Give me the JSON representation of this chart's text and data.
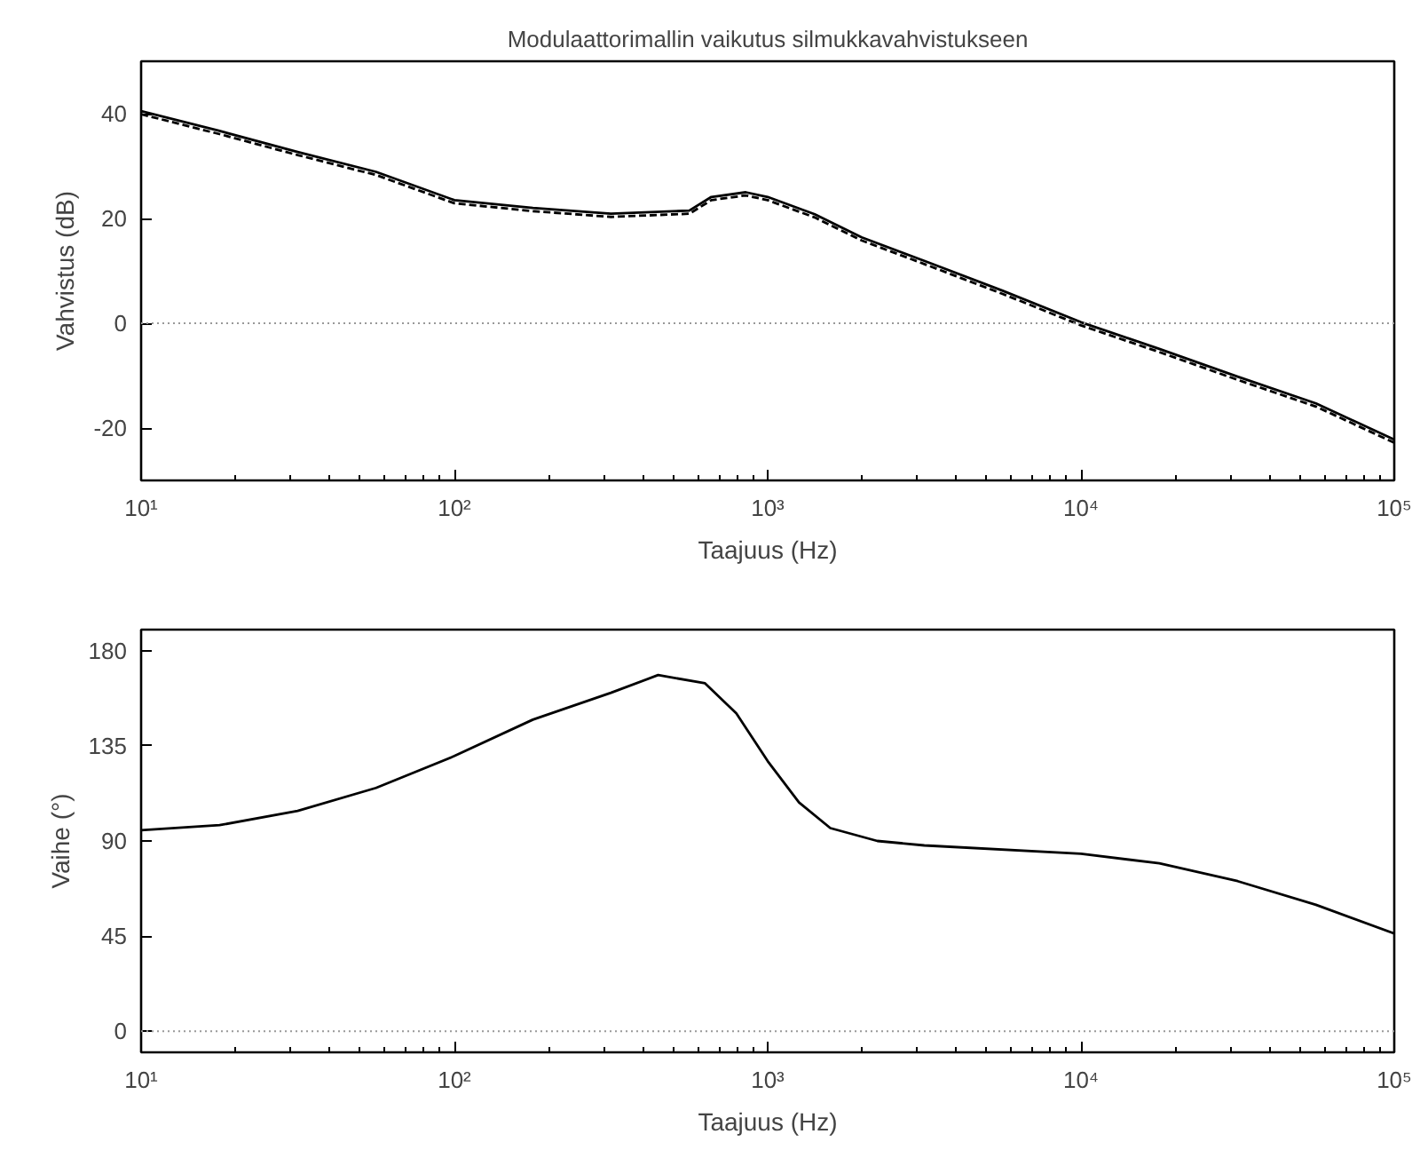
{
  "chart_data": [
    {
      "type": "line",
      "title": "Modulaattorimallin vaikutus silmukkavahvistukseen",
      "xlabel": "Taajuus (Hz)",
      "ylabel": "Vahvistus (dB)",
      "log": "x",
      "grid": false,
      "x": [
        10,
        17.8,
        31.6,
        56.2,
        100,
        178,
        316,
        562,
        661,
        851,
        1000,
        1413,
        1995,
        3162,
        5623,
        10000,
        17783,
        31623,
        56234,
        100000
      ],
      "series": [
        {
          "color": "#000000",
          "line_style": "solid",
          "values": [
            40.5,
            36.7,
            32.7,
            28.9,
            23.5,
            22.0,
            20.9,
            21.5,
            24.1,
            25.0,
            24.1,
            20.8,
            16.4,
            11.9,
            6.2,
            0.2,
            -4.9,
            -10.2,
            -15.3,
            -22.2
          ]
        },
        {
          "color": "#000000",
          "line_style": "dashed",
          "values": [
            39.9,
            36.1,
            32.1,
            28.3,
            22.9,
            21.4,
            20.3,
            20.9,
            23.5,
            24.4,
            23.5,
            20.2,
            15.8,
            11.3,
            5.6,
            -0.4,
            -5.5,
            -10.8,
            -15.9,
            -22.8
          ]
        }
      ],
      "xlim": [
        10,
        100000
      ],
      "ylim": [
        -30,
        50
      ],
      "xticks": [
        {
          "value": 10,
          "label": "10¹"
        },
        {
          "value": 100,
          "label": "10²"
        },
        {
          "value": 1000,
          "label": "10³"
        },
        {
          "value": 10000,
          "label": "10⁴"
        },
        {
          "value": 100000,
          "label": "10⁵"
        }
      ],
      "yticks": [
        -20,
        0,
        20,
        40
      ],
      "ref_lines": [
        {
          "axis": "y",
          "value": 0,
          "color": "#999999",
          "line_style": "dotted"
        }
      ]
    },
    {
      "type": "line",
      "xlabel": "Taajuus (Hz)",
      "ylabel": "Vaihe (°)",
      "log": "x",
      "grid": false,
      "x": [
        10,
        17.8,
        31.6,
        56.2,
        100,
        178,
        316,
        447,
        631,
        794,
        1000,
        1259,
        1585,
        2239,
        3162,
        10000,
        17783,
        31623,
        56234,
        100000
      ],
      "series": [
        {
          "color": "#000000",
          "line_style": "solid",
          "values": [
            95.1,
            97.5,
            104.2,
            115.1,
            130.2,
            147.4,
            160.1,
            168.5,
            164.6,
            150.4,
            127.8,
            108.2,
            96.1,
            90.0,
            87.9,
            84.0,
            79.4,
            71.0,
            59.8,
            46.2
          ]
        }
      ],
      "xlim": [
        10,
        100000
      ],
      "ylim": [
        -10,
        190
      ],
      "xticks": [
        {
          "value": 10,
          "label": "10¹"
        },
        {
          "value": 100,
          "label": "10²"
        },
        {
          "value": 1000,
          "label": "10³"
        },
        {
          "value": 10000,
          "label": "10⁴"
        },
        {
          "value": 100000,
          "label": "10⁵"
        }
      ],
      "yticks": [
        0,
        45,
        90,
        135,
        180
      ],
      "ref_lines": [
        {
          "axis": "y",
          "value": 0,
          "color": "#999999",
          "line_style": "dotted"
        }
      ]
    }
  ]
}
